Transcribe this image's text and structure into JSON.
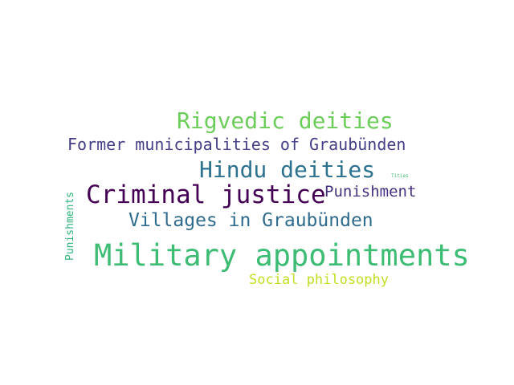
{
  "words": [
    {
      "key": "rigvedic",
      "text": "Rigvedic deities",
      "color": "#6ccd5a"
    },
    {
      "key": "former",
      "text": "Former municipalities of Graubünden",
      "color": "#433e85"
    },
    {
      "key": "hindu",
      "text": "Hindu deities",
      "color": "#2c728e"
    },
    {
      "key": "tities",
      "text": "Tities",
      "color": "#3fbc73"
    },
    {
      "key": "punishment",
      "text": "Punishment",
      "color": "#46327e"
    },
    {
      "key": "criminal",
      "text": "Criminal justice",
      "color": "#440154"
    },
    {
      "key": "villages",
      "text": "Villages in Graubünden",
      "color": "#2f6b8e"
    },
    {
      "key": "military",
      "text": "Military appointments",
      "color": "#3dbc74"
    },
    {
      "key": "social",
      "text": "Social philosophy",
      "color": "#c2df23"
    },
    {
      "key": "punishments",
      "text": "Punishments",
      "color": "#2fb47c"
    }
  ]
}
